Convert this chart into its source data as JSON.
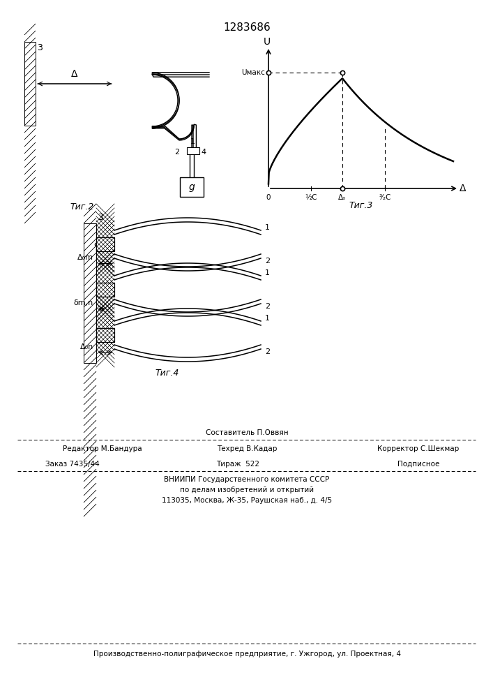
{
  "title": "1283686",
  "bg_color": "#ffffff",
  "fig2_caption": "Τиг.2",
  "fig3_caption": "Τиг.3",
  "fig4_caption": "Τиг.4",
  "footer_col1_row1": "Редактор М.Бандура",
  "footer_col2_row1": "Составитель П.Оввян",
  "footer_col2_row2": "Техред В.Кадар",
  "footer_col3_row1": "Корректор С.Шекмар",
  "footer2_left": "Заказ 7435/44",
  "footer2_mid": "Тираж  522",
  "footer2_right": "Подписное",
  "footer2_l2": "ВНИИПИ Государственного комитета СССР",
  "footer2_l3": "по делам изобретений и открытий",
  "footer2_l4": "113035, Москва, Ж-35, Раушская наб., д. 4/5",
  "footer3": "Производственно-полиграфическое предприятие, г. Ужгород, ул. Проектная, 4"
}
